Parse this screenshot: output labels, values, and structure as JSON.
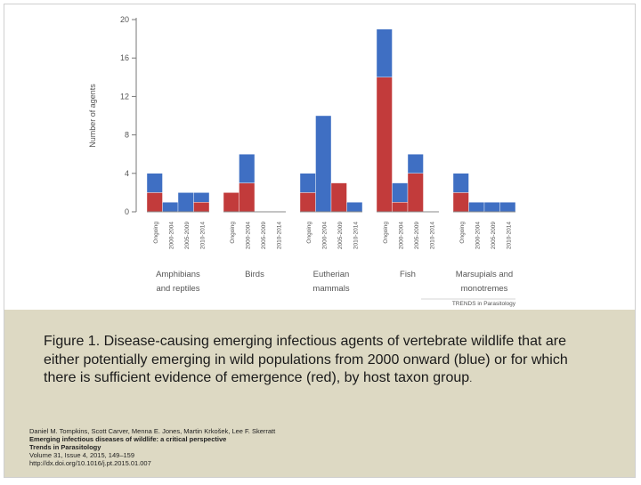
{
  "chart_data": {
    "type": "bar",
    "stacked": true,
    "ylabel": "Number of agents",
    "ylim": [
      0,
      20
    ],
    "yticks": [
      0,
      4,
      8,
      12,
      16,
      20
    ],
    "groups": [
      {
        "label_lines": [
          "Amphibians",
          "and reptiles"
        ],
        "categories": [
          "Ongoing",
          "2000-2004",
          "2005-2009",
          "2010-2014"
        ]
      },
      {
        "label_lines": [
          "Birds"
        ],
        "categories": [
          "Ongoing",
          "2000-2004",
          "2005-2009",
          "2010-2014"
        ]
      },
      {
        "label_lines": [
          "Eutherian",
          "mammals"
        ],
        "categories": [
          "Ongoing",
          "2000-2004",
          "2005-2009",
          "2010-2014"
        ]
      },
      {
        "label_lines": [
          "Fish"
        ],
        "categories": [
          "Ongoing",
          "2000-2004",
          "2005-2009",
          "2010-2014"
        ]
      },
      {
        "label_lines": [
          "Marsupials and",
          "monotremes"
        ],
        "categories": [
          "Ongoing",
          "2000-2004",
          "2005-2009",
          "2010-2014"
        ]
      }
    ],
    "series": [
      {
        "color": "#c23b3b",
        "values": [
          2,
          0,
          0,
          1,
          2,
          3,
          0,
          0,
          2,
          0,
          3,
          0,
          14,
          1,
          4,
          0,
          2,
          0,
          0,
          0
        ]
      },
      {
        "color": "#3f6fc3",
        "values": [
          2,
          1,
          2,
          1,
          0,
          3,
          0,
          0,
          2,
          10,
          0,
          1,
          5,
          2,
          2,
          0,
          2,
          1,
          1,
          1
        ]
      }
    ],
    "source_label": "TRENDS in Parasitology"
  },
  "caption": {
    "text": "Figure 1. Disease-causing emerging infectious agents of vertebrate wildlife that are either potentially emerging in wild populations from 2000 onward (blue) or for which there is sufficient evidence of emergence (red), by host taxon group",
    "period": "."
  },
  "citation": {
    "authors": "Daniel M. Tompkins,  Scott Carver,  Menna E. Jones,  Martin Krkošek,  Lee F. Skerratt",
    "title": "Emerging infectious diseases of wildlife: a critical perspective",
    "journal": "Trends in Parasitology",
    "volume": "Volume 31, Issue 4, 2015, 149–159",
    "doi": "http://dx.doi.org/10.1016/j.pt.2015.01.007"
  }
}
